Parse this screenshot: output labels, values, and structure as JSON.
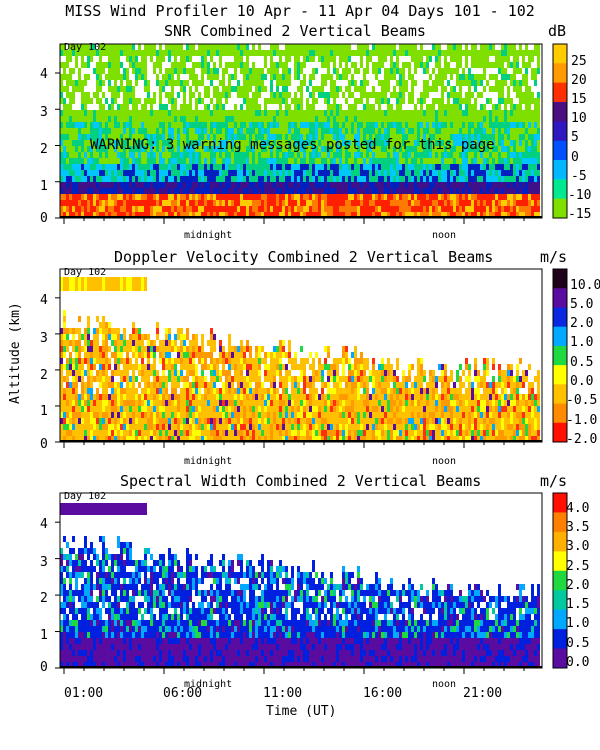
{
  "header": {
    "title": "MISS Wind Profiler  10 Apr - 11 Apr 04 Days 101 - 102"
  },
  "axes": {
    "ylabel": "Altitude (km)",
    "xlabel": "Time (UT)",
    "altitude_ticks": [
      "0",
      "1",
      "2",
      "3",
      "4"
    ],
    "time_ticks": [
      "01:00",
      "06:00",
      "11:00",
      "16:00",
      "21:00"
    ],
    "markers": [
      "midnight",
      "noon"
    ],
    "day_label": "Day 102"
  },
  "warning": "WARNING: 3 warning messages posted for this page",
  "colors": {
    "palette": [
      "#7fe000",
      "#00d080",
      "#00c8ff",
      "#0070ff",
      "#0020c0",
      "#40108a",
      "#ff6a00",
      "#ff2000",
      "#ffcc00",
      "#ff9a00"
    ]
  },
  "chart_data": [
    {
      "type": "heatmap",
      "title": "SNR Combined 2 Vertical Beams",
      "unit": "dB",
      "colorbar": {
        "labels": [
          "25",
          "20",
          "15",
          "10",
          "5",
          "0",
          "-5",
          "-10",
          "-15"
        ],
        "colors": [
          "#ffcc00",
          "#ff9a00",
          "#ff3000",
          "#4a1080",
          "#3018c0",
          "#0050ff",
          "#00b8ff",
          "#00e890",
          "#7fe000"
        ]
      },
      "xlim": [
        23,
        24
      ],
      "ylim": [
        0,
        4.8
      ]
    },
    {
      "type": "heatmap",
      "title": "Doppler Velocity Combined 2 Vertical Beams",
      "unit": "m/s",
      "colorbar": {
        "labels": [
          "10.0",
          "5.0",
          "2.0",
          "1.0",
          "0.5",
          "0.0",
          "-0.5",
          "-1.0",
          "-2.0"
        ],
        "colors": [
          "#200018",
          "#5a0ca0",
          "#0a28e0",
          "#00a8ff",
          "#20d840",
          "#ffff00",
          "#ffc000",
          "#ff8c00",
          "#ff1000"
        ]
      },
      "xlim": [
        23,
        24
      ],
      "ylim": [
        0,
        4.8
      ]
    },
    {
      "type": "heatmap",
      "title": "Spectral Width Combined 2 Vertical Beams",
      "unit": "m/s",
      "colorbar": {
        "labels": [
          "4.0",
          "3.5",
          "3.0",
          "2.5",
          "2.0",
          "1.5",
          "1.0",
          "0.5",
          "0.0"
        ],
        "colors": [
          "#ff1000",
          "#ff8000",
          "#ffb000",
          "#ffff00",
          "#20d840",
          "#00c8a0",
          "#00a8ff",
          "#0020e0",
          "#5a0ca0"
        ]
      },
      "xlim": [
        23,
        24
      ],
      "ylim": [
        0,
        4.8
      ]
    }
  ]
}
